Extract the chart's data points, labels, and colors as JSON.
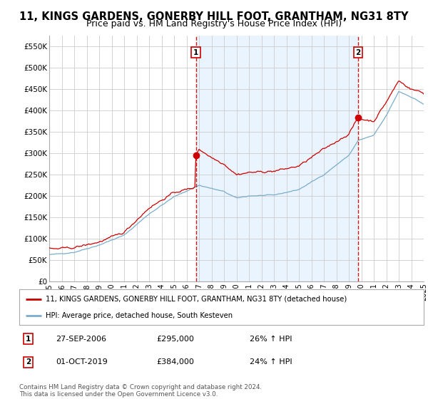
{
  "title": "11, KINGS GARDENS, GONERBY HILL FOOT, GRANTHAM, NG31 8TY",
  "subtitle": "Price paid vs. HM Land Registry's House Price Index (HPI)",
  "title_fontsize": 10.5,
  "subtitle_fontsize": 9,
  "ylabel_ticks": [
    "£0",
    "£50K",
    "£100K",
    "£150K",
    "£200K",
    "£250K",
    "£300K",
    "£350K",
    "£400K",
    "£450K",
    "£500K",
    "£550K"
  ],
  "ytick_values": [
    0,
    50000,
    100000,
    150000,
    200000,
    250000,
    300000,
    350000,
    400000,
    450000,
    500000,
    550000
  ],
  "ylim": [
    0,
    575000
  ],
  "sale1_month_idx": 141,
  "sale1_price": 295000,
  "sale2_month_idx": 297,
  "sale2_price": 384000,
  "red_color": "#cc0000",
  "blue_color": "#7aadcc",
  "shade_color": "#ddeeff",
  "background_color": "#ffffff",
  "grid_color": "#cccccc",
  "legend_line1": "11, KINGS GARDENS, GONERBY HILL FOOT, GRANTHAM, NG31 8TY (detached house)",
  "legend_line2": "HPI: Average price, detached house, South Kesteven",
  "footer": "Contains HM Land Registry data © Crown copyright and database right 2024.\nThis data is licensed under the Open Government Licence v3.0.",
  "x_year_labels": [
    "1995",
    "1996",
    "1997",
    "1998",
    "1999",
    "2000",
    "2001",
    "2002",
    "2003",
    "2004",
    "2005",
    "2006",
    "2007",
    "2008",
    "2009",
    "2010",
    "2011",
    "2012",
    "2013",
    "2014",
    "2015",
    "2016",
    "2017",
    "2018",
    "2019",
    "2020",
    "2021",
    "2022",
    "2023",
    "2024",
    "2025"
  ],
  "n_months": 361
}
